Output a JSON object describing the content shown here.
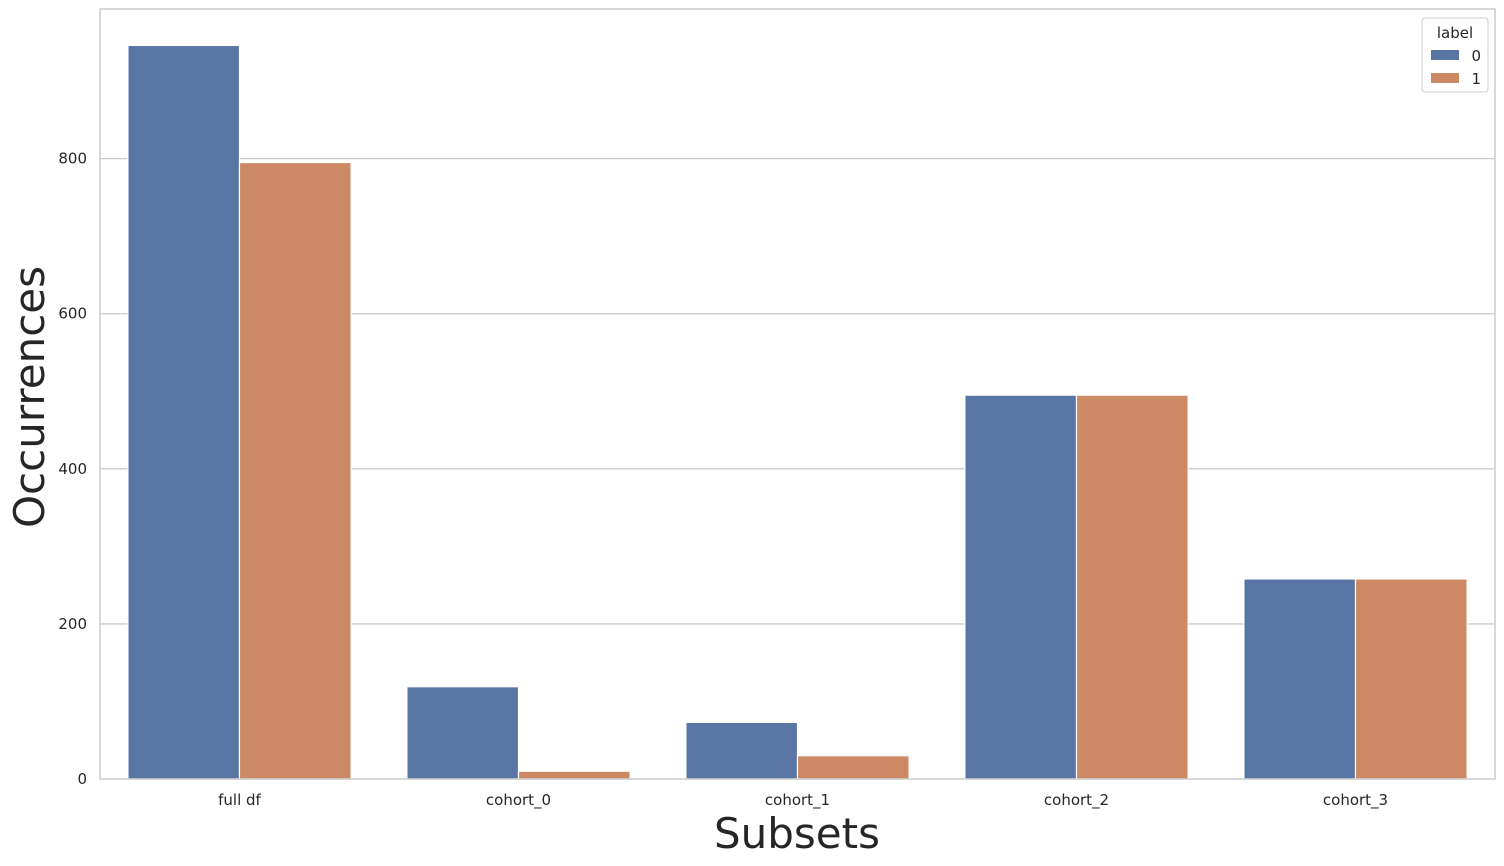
{
  "chart_data": {
    "type": "bar",
    "title": "",
    "xlabel": "Subsets",
    "ylabel": "Occurrences",
    "categories": [
      "full df",
      "cohort_0",
      "cohort_1",
      "cohort_2",
      "cohort_3"
    ],
    "series": [
      {
        "name": "0",
        "color": "#5975a4",
        "values": [
          946,
          119,
          73,
          495,
          258
        ]
      },
      {
        "name": "1",
        "color": "#cc8963",
        "values": [
          795,
          10,
          30,
          495,
          258
        ]
      }
    ],
    "ylim": [
      0,
      993
    ],
    "yticks": [
      0,
      200,
      400,
      600,
      800
    ],
    "grid": "horizontal",
    "legend": {
      "title": "label",
      "placement": "top-right"
    }
  }
}
